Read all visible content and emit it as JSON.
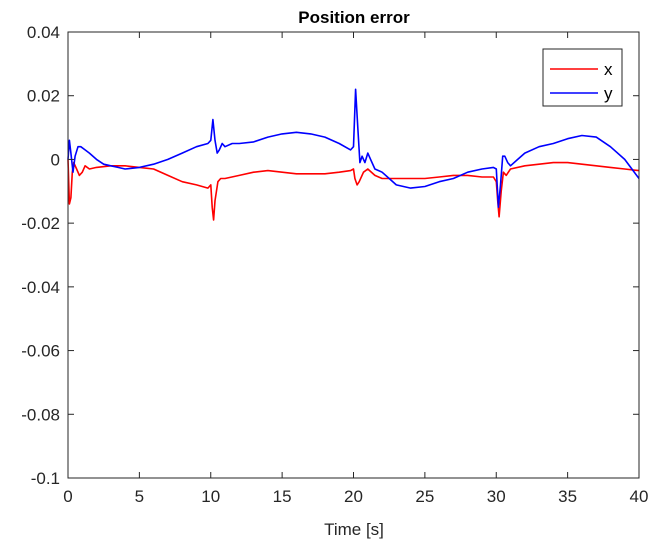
{
  "chart_data": {
    "type": "line",
    "title": "Position error",
    "xlabel": "Time [s]",
    "ylabel": "",
    "xlim": [
      0,
      40
    ],
    "ylim": [
      -0.1,
      0.04
    ],
    "xticks": [
      0,
      5,
      10,
      15,
      20,
      25,
      30,
      35,
      40
    ],
    "xtick_labels": [
      "0",
      "5",
      "10",
      "15",
      "20",
      "25",
      "30",
      "35",
      "40"
    ],
    "yticks": [
      -0.1,
      -0.08,
      -0.06,
      -0.04,
      -0.02,
      0,
      0.02,
      0.04
    ],
    "ytick_labels": [
      "-0.1",
      "-0.08",
      "-0.06",
      "-0.04",
      "-0.02",
      "0",
      "0.02",
      "0.04"
    ],
    "grid": false,
    "legend_position": "top-right",
    "series": [
      {
        "name": "x",
        "color": "#ff0000",
        "x": [
          0,
          0.1,
          0.2,
          0.3,
          0.4,
          0.6,
          0.8,
          1.0,
          1.2,
          1.5,
          2.0,
          3.0,
          4.0,
          5.0,
          6.0,
          7.0,
          8.0,
          9.0,
          9.8,
          10.0,
          10.1,
          10.2,
          10.3,
          10.5,
          10.7,
          11.0,
          12.0,
          13.0,
          14.0,
          15.0,
          16.0,
          17.0,
          18.0,
          19.0,
          19.8,
          20.0,
          20.1,
          20.25,
          20.4,
          20.7,
          21.0,
          21.5,
          22.0,
          23.0,
          24.0,
          25.0,
          26.0,
          27.0,
          28.0,
          29.0,
          29.8,
          30.0,
          30.1,
          30.2,
          30.35,
          30.5,
          30.7,
          31.0,
          32.0,
          33.0,
          34.0,
          35.0,
          36.0,
          37.0,
          38.0,
          39.0,
          40.0
        ],
        "y": [
          0.0,
          -0.014,
          -0.012,
          -0.004,
          -0.001,
          -0.003,
          -0.005,
          -0.004,
          -0.002,
          -0.003,
          -0.0025,
          -0.002,
          -0.002,
          -0.0025,
          -0.003,
          -0.005,
          -0.007,
          -0.008,
          -0.009,
          -0.008,
          -0.015,
          -0.019,
          -0.013,
          -0.007,
          -0.006,
          -0.006,
          -0.005,
          -0.004,
          -0.0035,
          -0.004,
          -0.0045,
          -0.0045,
          -0.0045,
          -0.004,
          -0.0035,
          -0.003,
          -0.006,
          -0.008,
          -0.007,
          -0.004,
          -0.003,
          -0.005,
          -0.006,
          -0.006,
          -0.006,
          -0.006,
          -0.0055,
          -0.005,
          -0.005,
          -0.0055,
          -0.0055,
          -0.007,
          -0.013,
          -0.018,
          -0.01,
          -0.004,
          -0.005,
          -0.003,
          -0.002,
          -0.0015,
          -0.001,
          -0.001,
          -0.0015,
          -0.002,
          -0.0025,
          -0.003,
          -0.0035
        ]
      },
      {
        "name": "y",
        "color": "#0000ff",
        "x": [
          0,
          0.1,
          0.2,
          0.35,
          0.5,
          0.7,
          0.9,
          1.2,
          1.5,
          2.0,
          2.5,
          3.0,
          3.5,
          4.0,
          5.0,
          6.0,
          7.0,
          8.0,
          9.0,
          9.8,
          10.0,
          10.15,
          10.3,
          10.45,
          10.6,
          10.8,
          11.0,
          11.5,
          12.0,
          13.0,
          14.0,
          15.0,
          16.0,
          17.0,
          18.0,
          19.0,
          19.8,
          20.0,
          20.15,
          20.3,
          20.45,
          20.6,
          20.8,
          21.0,
          21.2,
          21.5,
          22.0,
          22.5,
          23.0,
          24.0,
          25.0,
          26.0,
          27.0,
          28.0,
          29.0,
          29.8,
          30.0,
          30.15,
          30.3,
          30.45,
          30.6,
          30.8,
          31.0,
          31.5,
          32.0,
          33.0,
          34.0,
          35.0,
          36.0,
          37.0,
          38.0,
          39.0,
          40.0
        ],
        "y": [
          0.0,
          0.006,
          0.002,
          -0.004,
          0.001,
          0.004,
          0.004,
          0.003,
          0.002,
          0.0,
          -0.0015,
          -0.002,
          -0.0025,
          -0.003,
          -0.0025,
          -0.0015,
          0.0,
          0.002,
          0.004,
          0.005,
          0.006,
          0.0125,
          0.006,
          0.002,
          0.003,
          0.005,
          0.004,
          0.005,
          0.005,
          0.0055,
          0.007,
          0.008,
          0.0085,
          0.008,
          0.007,
          0.005,
          0.003,
          0.004,
          0.022,
          0.01,
          -0.001,
          0.001,
          -0.001,
          0.002,
          0.0,
          -0.003,
          -0.004,
          -0.006,
          -0.008,
          -0.009,
          -0.0085,
          -0.007,
          -0.006,
          -0.004,
          -0.003,
          -0.0025,
          -0.003,
          -0.015,
          -0.008,
          0.001,
          0.001,
          -0.001,
          -0.002,
          0.0,
          0.002,
          0.004,
          0.005,
          0.0065,
          0.0075,
          0.007,
          0.004,
          0.0,
          -0.006
        ]
      }
    ]
  }
}
